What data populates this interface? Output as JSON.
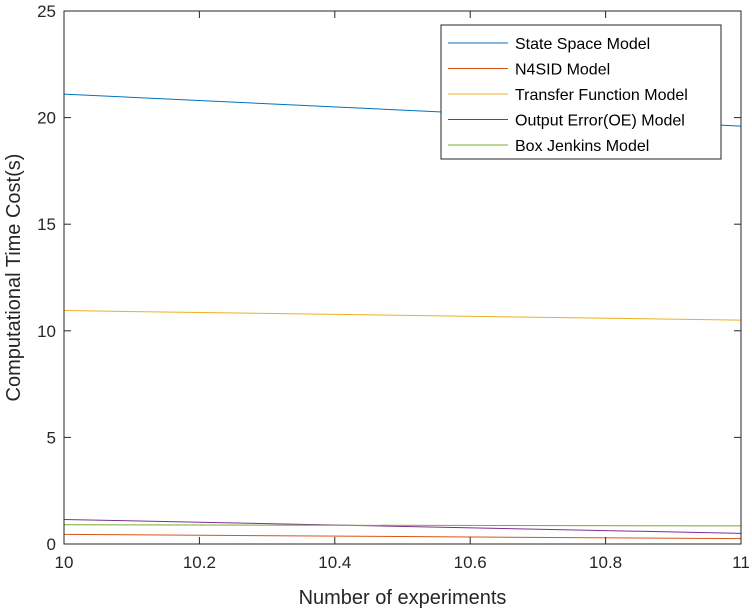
{
  "chart_data": {
    "type": "line",
    "title": "",
    "xlabel": "Number of experiments",
    "ylabel": "Computational Time Cost(s)",
    "xlim": [
      10,
      11
    ],
    "ylim": [
      0,
      25
    ],
    "xticks": [
      10,
      10.2,
      10.4,
      10.6,
      10.8,
      11
    ],
    "xtick_labels": [
      "10",
      "10.2",
      "10.4",
      "10.6",
      "10.8",
      "11"
    ],
    "yticks": [
      0,
      5,
      10,
      15,
      20,
      25
    ],
    "ytick_labels": [
      "0",
      "5",
      "10",
      "15",
      "20",
      "25"
    ],
    "grid": false,
    "legend_position": "top-right",
    "x": [
      10,
      11
    ],
    "series": [
      {
        "name": "State Space Model",
        "color": "#0072BD",
        "values": [
          21.1,
          19.6
        ]
      },
      {
        "name": "N4SID Model",
        "color": "#D95319",
        "values": [
          0.45,
          0.25
        ]
      },
      {
        "name": "Transfer Function Model",
        "color": "#EDB120",
        "values": [
          10.95,
          10.5
        ]
      },
      {
        "name": "Output Error(OE) Model",
        "color": "#7E2F8E",
        "values": [
          1.15,
          0.5
        ]
      },
      {
        "name": "Box Jenkins Model",
        "color": "#77AC30",
        "values": [
          0.9,
          0.85
        ]
      }
    ]
  }
}
